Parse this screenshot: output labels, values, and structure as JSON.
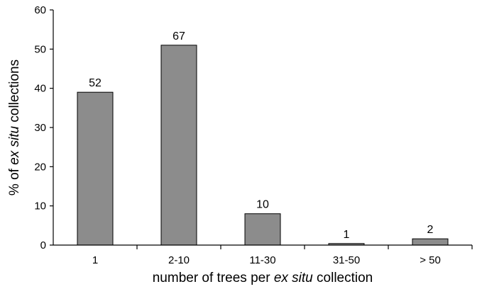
{
  "chart_data": {
    "type": "bar",
    "categories": [
      "1",
      "2-10",
      "11-30",
      "31-50",
      "> 50"
    ],
    "values": [
      39,
      51,
      8,
      0.4,
      1.6
    ],
    "data_labels": [
      "52",
      "67",
      "10",
      "1",
      "2"
    ],
    "xlabel": {
      "pre": "number of trees per ",
      "italic": "ex situ",
      "post": " collection"
    },
    "ylabel": {
      "pre": "% of ",
      "italic": "ex situ",
      "post": " collections"
    },
    "ylim": [
      0,
      60
    ],
    "yticks": [
      "0",
      "10",
      "20",
      "30",
      "40",
      "50",
      "60"
    ],
    "grid": false,
    "colors": {
      "bar_fill": "#8c8c8c",
      "bar_stroke": "#000000",
      "axis": "#000000"
    }
  }
}
